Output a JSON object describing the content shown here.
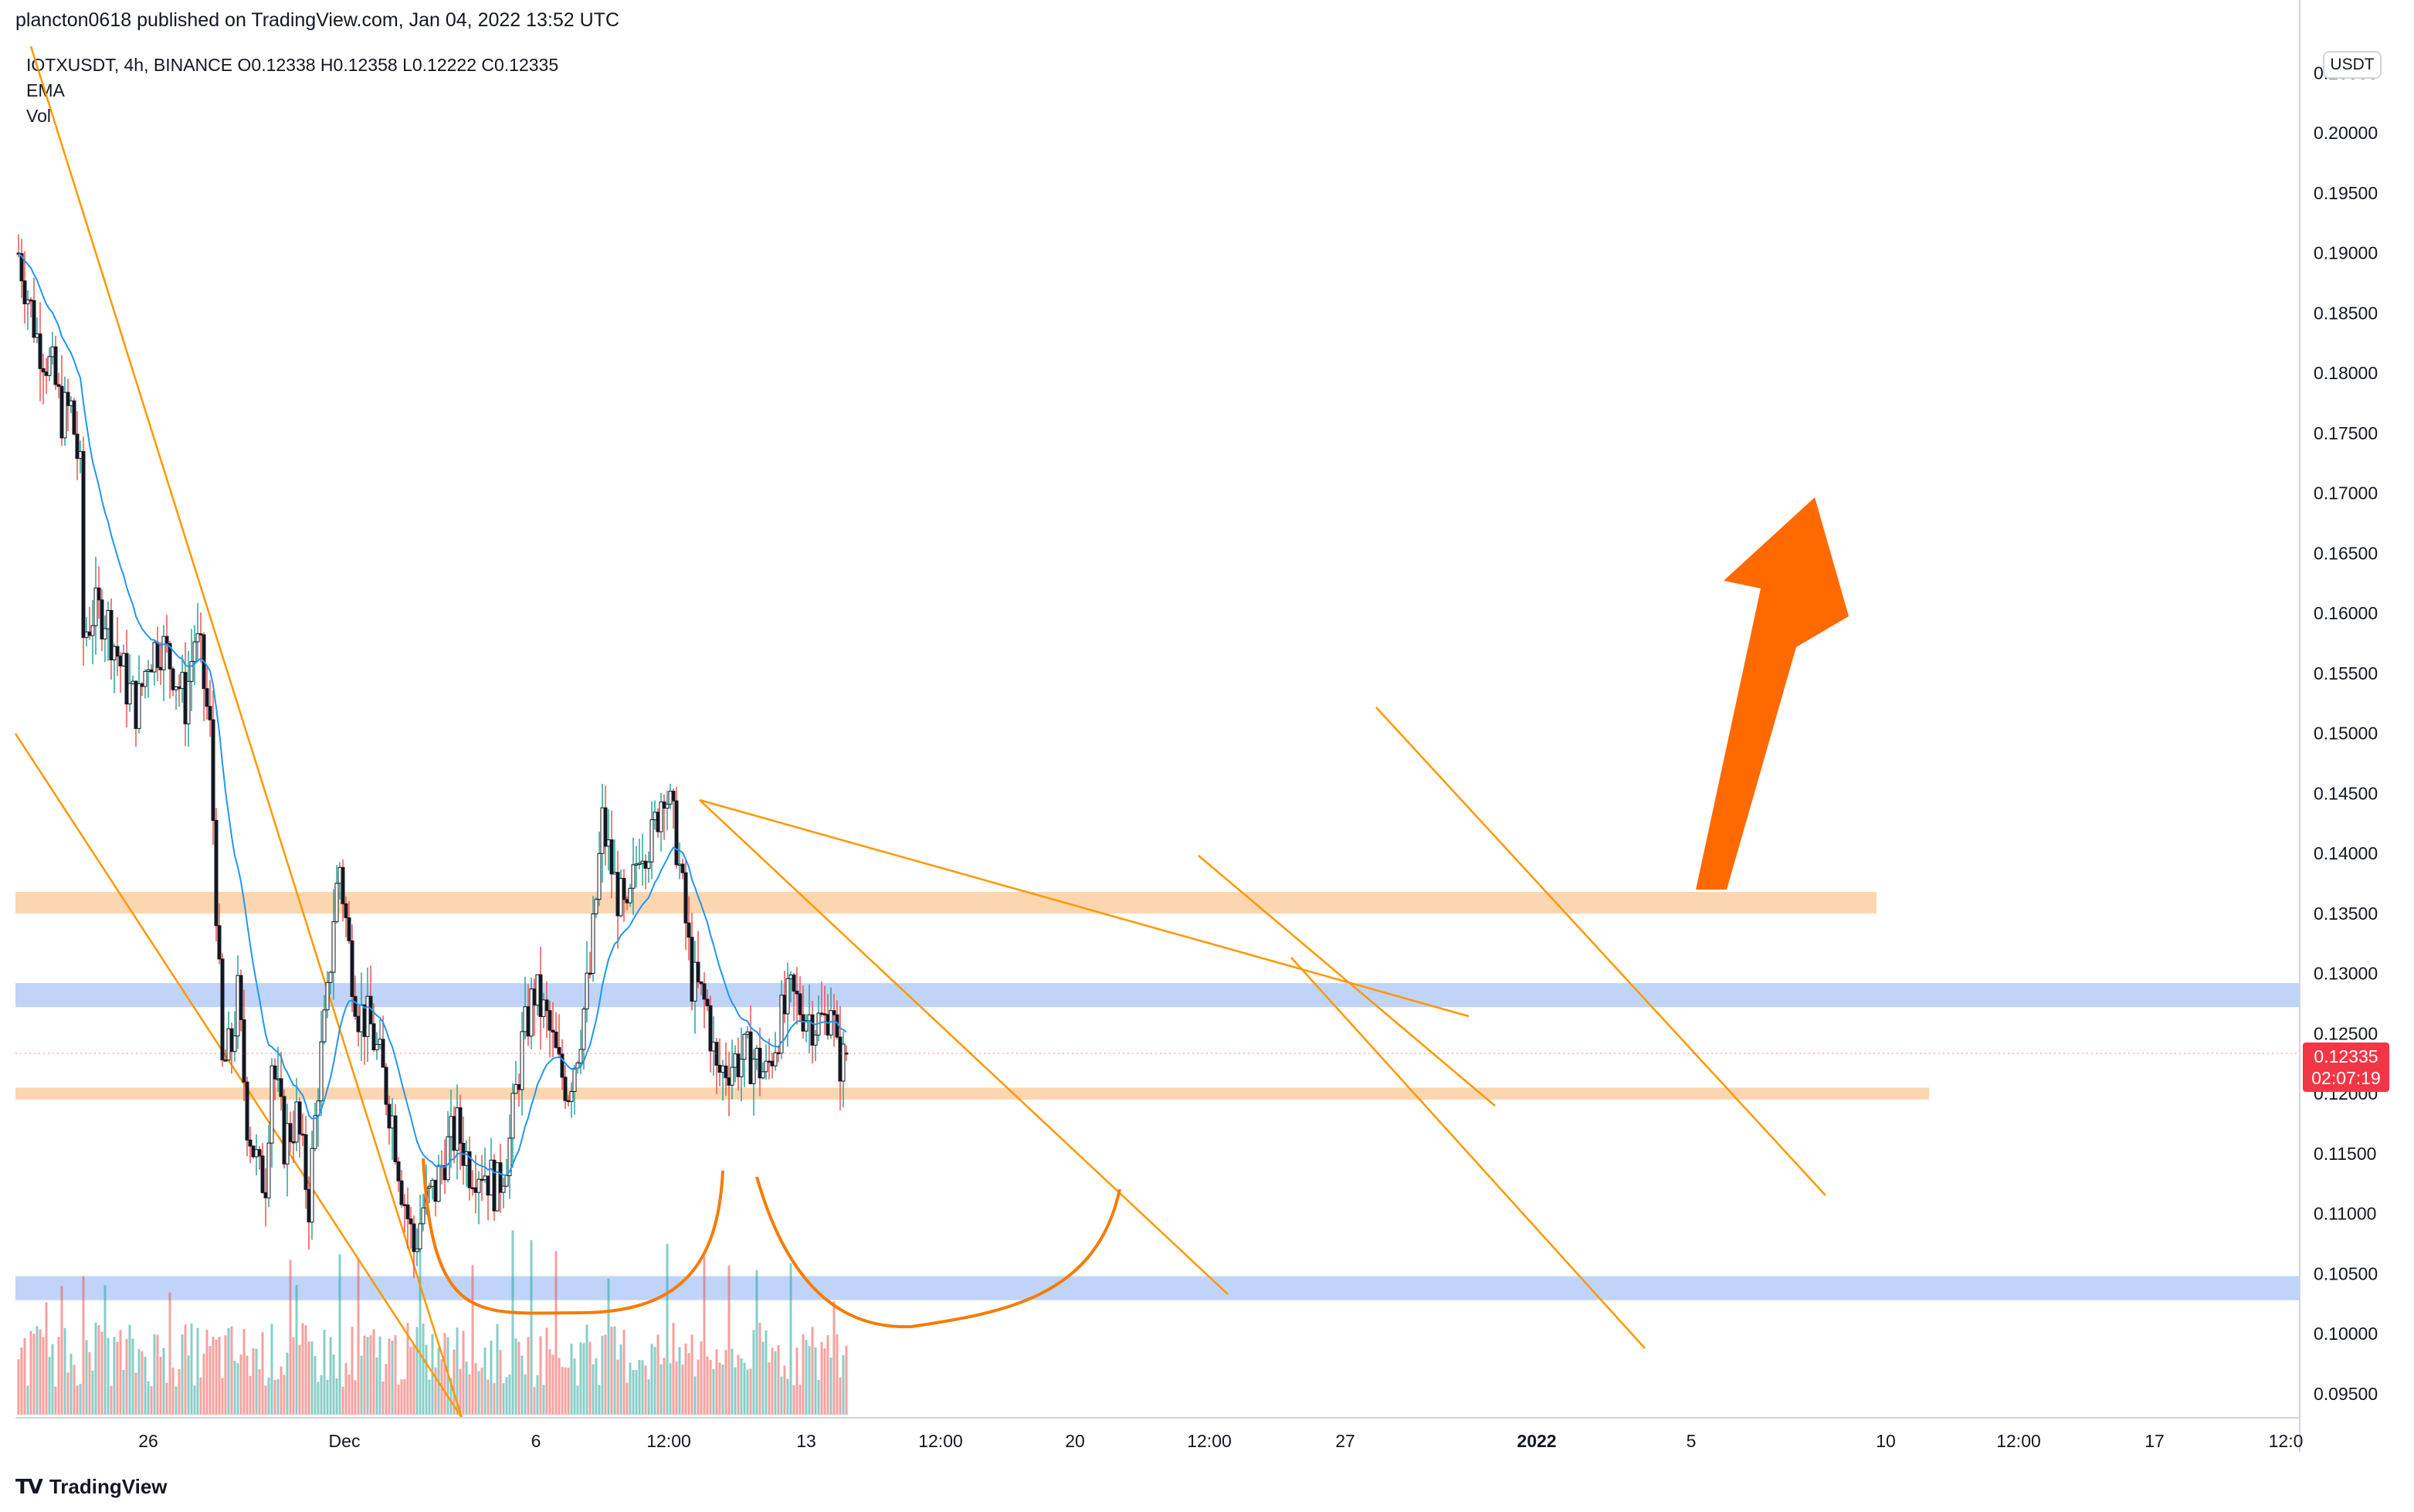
{
  "header": {
    "published_text": "plancton0618 published on TradingView.com, Jan 04, 2022 13:52 UTC"
  },
  "legend": {
    "symbol_line": "IOTXUSDT, 4h, BINANCE  O0.12338  H0.12358  L0.12222  C0.12335",
    "indicator_1": "EMA",
    "indicator_2": "Vol"
  },
  "price_axis": {
    "currency": "USDT",
    "current_price": "0.12335",
    "countdown": "02:07:19",
    "current_price_color": "#f23645"
  },
  "footer": {
    "brand": "TradingView"
  },
  "colors": {
    "up_candle": "#ffffff",
    "down_candle": "#131722",
    "ema_line": "#2196f3",
    "trendline": "#ff9800",
    "arrow": "#ff6a00",
    "cup_curve": "#f57c00",
    "vol_up": "#26a69a",
    "vol_down": "#ef5350",
    "zone_orange": "#f9c896",
    "zone_blue": "#a9c6f5"
  },
  "chart_data": {
    "type": "candlestick",
    "symbol": "IOTXUSDT",
    "interval": "4h",
    "exchange": "BINANCE",
    "ohlc": {
      "open": 0.12338,
      "high": 0.12358,
      "low": 0.12222,
      "close": 0.12335
    },
    "ylim": [
      0.093,
      0.2085
    ],
    "y_ticks": [
      "0.09500",
      "0.10000",
      "0.10500",
      "0.11000",
      "0.11500",
      "0.12000",
      "0.12500",
      "0.13000",
      "0.13500",
      "0.14000",
      "0.14500",
      "0.15000",
      "0.15500",
      "0.16000",
      "0.16500",
      "0.17000",
      "0.17500",
      "0.18000",
      "0.18500",
      "0.19000",
      "0.19500",
      "0.20000",
      "0.20500"
    ],
    "x_ticks": [
      {
        "label": "26",
        "bold": false
      },
      {
        "label": "Dec",
        "bold": false
      },
      {
        "label": "6",
        "bold": false
      },
      {
        "label": "12:00",
        "bold": false
      },
      {
        "label": "13",
        "bold": false
      },
      {
        "label": "12:00",
        "bold": false
      },
      {
        "label": "20",
        "bold": false
      },
      {
        "label": "12:00",
        "bold": false
      },
      {
        "label": "27",
        "bold": false
      },
      {
        "label": "2022",
        "bold": true
      },
      {
        "label": "5",
        "bold": false
      },
      {
        "label": "10",
        "bold": false
      },
      {
        "label": "12:00",
        "bold": false
      },
      {
        "label": "17",
        "bold": false
      },
      {
        "label": "12:0",
        "bold": false
      }
    ],
    "price_path": [
      [
        0,
        0.19
      ],
      [
        12,
        0.183
      ],
      [
        22,
        0.18
      ],
      [
        28,
        0.1765
      ],
      [
        34,
        0.177
      ],
      [
        41,
        0.1705
      ],
      [
        42,
        0.158
      ],
      [
        48,
        0.16
      ],
      [
        56,
        0.16
      ],
      [
        62,
        0.1575
      ],
      [
        70,
        0.154
      ],
      [
        77,
        0.152
      ],
      [
        84,
        0.1565
      ],
      [
        92,
        0.1575
      ],
      [
        100,
        0.1555
      ],
      [
        108,
        0.1525
      ],
      [
        114,
        0.158
      ],
      [
        118,
        0.156
      ],
      [
        124,
        0.15
      ],
      [
        128,
        0.136
      ],
      [
        132,
        0.122
      ],
      [
        138,
        0.124
      ],
      [
        142,
        0.128
      ],
      [
        148,
        0.118
      ],
      [
        156,
        0.113
      ],
      [
        160,
        0.113
      ],
      [
        164,
        0.123
      ],
      [
        172,
        0.116
      ],
      [
        180,
        0.118
      ],
      [
        188,
        0.111
      ],
      [
        194,
        0.121
      ],
      [
        200,
        0.1275
      ],
      [
        204,
        0.135
      ],
      [
        208,
        0.139
      ],
      [
        214,
        0.132
      ],
      [
        220,
        0.127
      ],
      [
        228,
        0.1255
      ],
      [
        234,
        0.1225
      ],
      [
        242,
        0.118
      ],
      [
        248,
        0.1125
      ],
      [
        256,
        0.107
      ],
      [
        262,
        0.1105
      ],
      [
        270,
        0.112
      ],
      [
        276,
        0.115
      ],
      [
        284,
        0.117
      ],
      [
        292,
        0.114
      ],
      [
        300,
        0.114
      ],
      [
        310,
        0.112
      ],
      [
        318,
        0.116
      ],
      [
        326,
        0.124
      ],
      [
        334,
        0.1285
      ],
      [
        342,
        0.126
      ],
      [
        350,
        0.122
      ],
      [
        356,
        0.1205
      ],
      [
        362,
        0.124
      ],
      [
        370,
        0.13
      ],
      [
        378,
        0.1425
      ],
      [
        386,
        0.1375
      ],
      [
        394,
        0.134
      ],
      [
        402,
        0.141
      ],
      [
        410,
        0.141
      ],
      [
        418,
        0.146
      ],
      [
        426,
        0.141
      ],
      [
        430,
        0.1365
      ],
      [
        436,
        0.1295
      ],
      [
        446,
        0.127
      ],
      [
        452,
        0.1215
      ],
      [
        460,
        0.1225
      ],
      [
        468,
        0.123
      ],
      [
        476,
        0.123
      ],
      [
        484,
        0.1215
      ],
      [
        492,
        0.1255
      ],
      [
        500,
        0.128
      ],
      [
        508,
        0.127
      ],
      [
        516,
        0.126
      ],
      [
        522,
        0.126
      ],
      [
        526,
        0.128
      ],
      [
        530,
        0.123
      ],
      [
        536,
        0.1225
      ],
      [
        540,
        0.12335
      ]
    ],
    "volume_scale": [
      0,
      1
    ],
    "annotations": {
      "zones": [
        {
          "kind": "resistance",
          "color": "orange",
          "from": 0.135,
          "to": 0.1368
        },
        {
          "kind": "resistance",
          "color": "blue",
          "from": 0.1272,
          "to": 0.1292
        },
        {
          "kind": "support",
          "color": "orange",
          "from": 0.1195,
          "to": 0.1205
        },
        {
          "kind": "support",
          "color": "blue",
          "from": 0.1028,
          "to": 0.1048
        }
      ],
      "pattern": "inverse head and shoulders",
      "arrow": "up"
    }
  }
}
